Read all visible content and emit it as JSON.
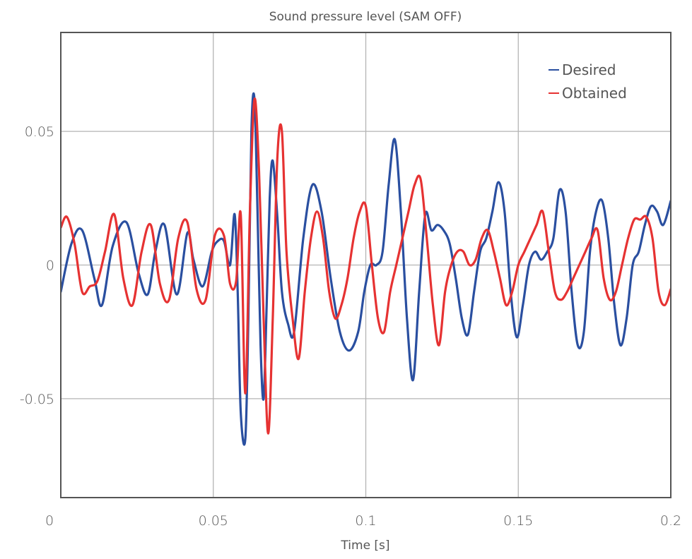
{
  "chart_data": {
    "type": "line",
    "title": "Sound pressure level (SAM OFF)",
    "xlabel": "Time [s]",
    "ylabel": "",
    "xlim": [
      0,
      0.2
    ],
    "ylim": [
      -0.087,
      0.087
    ],
    "xticks": [
      0,
      0.05,
      0.1,
      0.15,
      0.2
    ],
    "xtick_labels": [
      "0",
      "0.05",
      "0.1",
      "0.15",
      "0.2"
    ],
    "yticks": [
      -0.05,
      0,
      0.05
    ],
    "ytick_labels": [
      "-0.05",
      "0",
      "0.05"
    ],
    "grid": true,
    "legend_position": "top-right",
    "series": [
      {
        "name": "Desired",
        "color": "#2a4fa0",
        "x": [
          0.0,
          0.0035,
          0.007,
          0.011,
          0.0135,
          0.017,
          0.0215,
          0.0255,
          0.0285,
          0.031,
          0.034,
          0.038,
          0.0415,
          0.0435,
          0.0465,
          0.0495,
          0.0515,
          0.0535,
          0.0555,
          0.057,
          0.058,
          0.059,
          0.0605,
          0.0615,
          0.0625,
          0.0635,
          0.0645,
          0.0655,
          0.0665,
          0.0675,
          0.0685,
          0.0695,
          0.071,
          0.0725,
          0.0745,
          0.0765,
          0.0795,
          0.0825,
          0.0855,
          0.0885,
          0.0915,
          0.0945,
          0.0975,
          0.0995,
          0.1015,
          0.1035,
          0.1055,
          0.1075,
          0.1095,
          0.1115,
          0.1135,
          0.1155,
          0.1175,
          0.1195,
          0.1215,
          0.1235,
          0.1255,
          0.1275,
          0.1295,
          0.1315,
          0.1335,
          0.1355,
          0.1375,
          0.1395,
          0.1415,
          0.1435,
          0.1455,
          0.1475,
          0.1495,
          0.1515,
          0.1535,
          0.1555,
          0.1575,
          0.1595,
          0.1615,
          0.1635,
          0.1655,
          0.1675,
          0.1695,
          0.1715,
          0.1735,
          0.1755,
          0.1775,
          0.1795,
          0.1815,
          0.1835,
          0.1855,
          0.1875,
          0.1895,
          0.1915,
          0.1935,
          0.1955,
          0.1975,
          0.2
        ],
        "y": [
          -0.01,
          0.008,
          0.013,
          -0.005,
          -0.015,
          0.007,
          0.016,
          -0.003,
          -0.011,
          0.005,
          0.015,
          -0.011,
          0.012,
          0.002,
          -0.008,
          0.005,
          0.009,
          0.009,
          0.0,
          0.019,
          -0.01,
          -0.055,
          -0.065,
          -0.02,
          0.05,
          0.062,
          0.02,
          -0.03,
          -0.05,
          -0.015,
          0.025,
          0.039,
          0.018,
          -0.01,
          -0.022,
          -0.025,
          0.01,
          0.03,
          0.02,
          -0.005,
          -0.025,
          -0.032,
          -0.025,
          -0.01,
          0.0,
          0.0,
          0.005,
          0.03,
          0.047,
          0.02,
          -0.02,
          -0.043,
          -0.01,
          0.019,
          0.013,
          0.015,
          0.013,
          0.008,
          -0.005,
          -0.02,
          -0.026,
          -0.01,
          0.005,
          0.01,
          0.02,
          0.031,
          0.02,
          -0.01,
          -0.027,
          -0.015,
          0.0,
          0.005,
          0.002,
          0.005,
          0.01,
          0.028,
          0.02,
          -0.01,
          -0.03,
          -0.025,
          0.005,
          0.02,
          0.024,
          0.01,
          -0.015,
          -0.03,
          -0.02,
          0.0,
          0.005,
          0.015,
          0.022,
          0.02,
          0.015,
          0.024
        ]
      },
      {
        "name": "Obtained",
        "color": "#e63232",
        "x": [
          0.0,
          0.002,
          0.0045,
          0.007,
          0.0095,
          0.012,
          0.0145,
          0.0175,
          0.0205,
          0.0235,
          0.0265,
          0.0295,
          0.0325,
          0.0355,
          0.0385,
          0.0415,
          0.0445,
          0.0475,
          0.0505,
          0.0535,
          0.0555,
          0.0575,
          0.059,
          0.0605,
          0.062,
          0.0635,
          0.065,
          0.0665,
          0.068,
          0.0695,
          0.071,
          0.0725,
          0.074,
          0.076,
          0.078,
          0.08,
          0.082,
          0.084,
          0.086,
          0.088,
          0.09,
          0.092,
          0.094,
          0.096,
          0.098,
          0.1,
          0.102,
          0.104,
          0.106,
          0.108,
          0.11,
          0.112,
          0.114,
          0.116,
          0.118,
          0.12,
          0.122,
          0.124,
          0.126,
          0.128,
          0.13,
          0.132,
          0.134,
          0.136,
          0.138,
          0.14,
          0.142,
          0.144,
          0.146,
          0.148,
          0.15,
          0.152,
          0.154,
          0.156,
          0.158,
          0.16,
          0.162,
          0.164,
          0.166,
          0.168,
          0.17,
          0.172,
          0.174,
          0.176,
          0.178,
          0.18,
          0.182,
          0.184,
          0.186,
          0.188,
          0.19,
          0.192,
          0.194,
          0.196,
          0.198,
          0.2
        ],
        "y": [
          0.014,
          0.018,
          0.008,
          -0.01,
          -0.008,
          -0.006,
          0.005,
          0.019,
          -0.005,
          -0.015,
          0.005,
          0.015,
          -0.007,
          -0.013,
          0.01,
          0.016,
          -0.009,
          -0.013,
          0.011,
          0.011,
          -0.007,
          -0.006,
          0.019,
          -0.048,
          0.02,
          0.062,
          0.035,
          -0.02,
          -0.063,
          -0.02,
          0.04,
          0.05,
          0.005,
          -0.02,
          -0.035,
          -0.01,
          0.01,
          0.02,
          0.01,
          -0.01,
          -0.02,
          -0.015,
          -0.005,
          0.01,
          0.02,
          0.022,
          0.0,
          -0.02,
          -0.025,
          -0.01,
          0.0,
          0.01,
          0.02,
          0.03,
          0.032,
          0.01,
          -0.015,
          -0.03,
          -0.01,
          0.0,
          0.005,
          0.005,
          0.0,
          0.002,
          0.01,
          0.013,
          0.005,
          -0.005,
          -0.015,
          -0.01,
          0.0,
          0.005,
          0.01,
          0.015,
          0.02,
          0.005,
          -0.01,
          -0.013,
          -0.01,
          -0.005,
          0.0,
          0.005,
          0.01,
          0.013,
          -0.005,
          -0.013,
          -0.01,
          0.0,
          0.01,
          0.017,
          0.017,
          0.018,
          0.01,
          -0.01,
          -0.015,
          -0.009
        ]
      }
    ]
  }
}
